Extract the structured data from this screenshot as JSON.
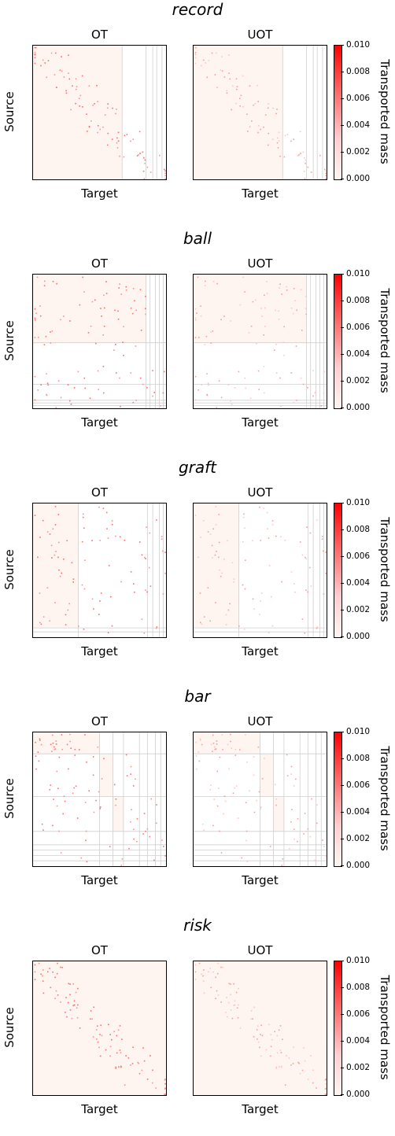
{
  "labels": {
    "left_title": "OT",
    "right_title": "UOT",
    "xlabel": "Target",
    "ylabel": "Source",
    "colorbar_label": "Transported mass",
    "colorbar_ticks": [
      "0.010",
      "0.008",
      "0.006",
      "0.004",
      "0.002",
      "0.000"
    ]
  },
  "colors": {
    "max": "#ff0000",
    "min": "#ffffff",
    "block": "#fff5f0"
  },
  "chart_data": [
    {
      "type": "heatmap",
      "title": "record",
      "panels": [
        "OT",
        "UOT"
      ],
      "xlabel": "Target",
      "ylabel": "Source",
      "colorbar": {
        "label": "Transported mass",
        "range": [
          0.0,
          0.01
        ]
      },
      "pattern": "diagonal",
      "n_points": 90,
      "row_breaks": [],
      "col_breaks": [
        0.67,
        0.85,
        0.9,
        0.93,
        0.97
      ],
      "tint_blocks": [
        [
          0,
          0.67,
          0,
          1
        ]
      ]
    },
    {
      "type": "heatmap",
      "title": "ball",
      "panels": [
        "OT",
        "UOT"
      ],
      "xlabel": "Target",
      "ylabel": "Source",
      "colorbar": {
        "label": "Transported mass",
        "range": [
          0.0,
          0.01
        ]
      },
      "pattern": "two-block",
      "n_points": 100,
      "row_breaks": [
        0.51,
        0.82,
        0.94,
        0.96,
        0.98
      ],
      "col_breaks": [
        0.85,
        0.88,
        0.92,
        0.95,
        0.98
      ],
      "tint_blocks": [
        [
          0,
          0.85,
          0,
          0.51
        ]
      ]
    },
    {
      "type": "heatmap",
      "title": "graft",
      "panels": [
        "OT",
        "UOT"
      ],
      "xlabel": "Target",
      "ylabel": "Source",
      "colorbar": {
        "label": "Transported mass",
        "range": [
          0.0,
          0.01
        ]
      },
      "pattern": "block",
      "n_points": 90,
      "row_breaks": [
        0.93,
        0.96
      ],
      "col_breaks": [
        0.34,
        0.86,
        0.9,
        0.95,
        0.98
      ],
      "tint_blocks": [
        [
          0,
          0.34,
          0,
          0.93
        ]
      ]
    },
    {
      "type": "heatmap",
      "title": "bar",
      "panels": [
        "OT",
        "UOT"
      ],
      "xlabel": "Target",
      "ylabel": "Source",
      "colorbar": {
        "label": "Transported mass",
        "range": [
          0.0,
          0.01
        ]
      },
      "pattern": "staircase",
      "n_points": 95,
      "row_breaks": [
        0.16,
        0.48,
        0.74,
        0.84,
        0.88,
        0.92,
        0.96
      ],
      "col_breaks": [
        0.5,
        0.6,
        0.68,
        0.8,
        0.86,
        0.92,
        0.96
      ],
      "tint_blocks": [
        [
          0,
          0.5,
          0,
          0.16
        ],
        [
          0.5,
          0.6,
          0.16,
          0.48
        ],
        [
          0.6,
          0.68,
          0.48,
          0.74
        ]
      ]
    },
    {
      "type": "heatmap",
      "title": "risk",
      "panels": [
        "OT",
        "UOT"
      ],
      "xlabel": "Target",
      "ylabel": "Source",
      "colorbar": {
        "label": "Transported mass",
        "range": [
          0.0,
          0.01
        ]
      },
      "pattern": "diagonal",
      "n_points": 100,
      "row_breaks": [],
      "col_breaks": [],
      "tint_blocks": [
        [
          0,
          1,
          0,
          1
        ]
      ]
    }
  ]
}
